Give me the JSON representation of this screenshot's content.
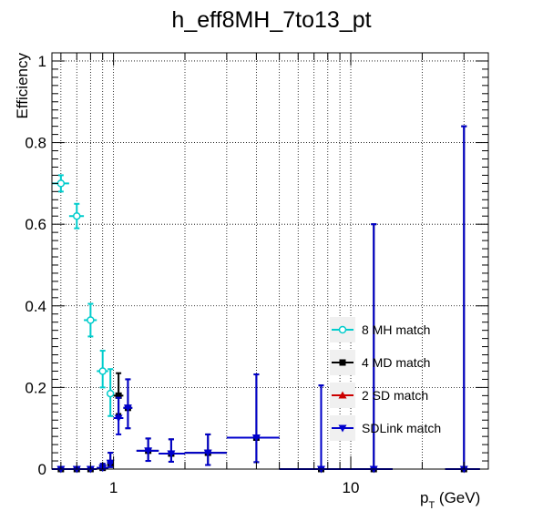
{
  "chart_data": {
    "type": "scatter",
    "title": "h_eff8MH_7to13_pt",
    "xlabel_main": "p",
    "xlabel_sub": "T",
    "xlabel_unit": " (GeV)",
    "ylabel": "Efficiency",
    "xscale": "log",
    "xlim": [
      0.55,
      38
    ],
    "ylim": [
      0,
      1.02
    ],
    "grid": true,
    "legend_position": "bottom-right",
    "x_tick_labels": [
      {
        "value": 1,
        "label": "1"
      },
      {
        "value": 10,
        "label": "10"
      }
    ],
    "y_tick_labels": [
      {
        "value": 0,
        "label": "0"
      },
      {
        "value": 0.2,
        "label": "0.2"
      },
      {
        "value": 0.4,
        "label": "0.4"
      },
      {
        "value": 0.6,
        "label": "0.6"
      },
      {
        "value": 0.8,
        "label": "0.8"
      },
      {
        "value": 1,
        "label": "1"
      }
    ],
    "series": [
      {
        "name": "8 MH match",
        "color": "#00cccc",
        "marker": "open-circle",
        "points": [
          {
            "x": 0.6,
            "xlo": 0.55,
            "xhi": 0.65,
            "y": 0.7,
            "elo": 0.02,
            "ehi": 0.02
          },
          {
            "x": 0.7,
            "xlo": 0.65,
            "xhi": 0.75,
            "y": 0.62,
            "elo": 0.03,
            "ehi": 0.03
          },
          {
            "x": 0.8,
            "xlo": 0.75,
            "xhi": 0.85,
            "y": 0.365,
            "elo": 0.04,
            "ehi": 0.04
          },
          {
            "x": 0.9,
            "xlo": 0.85,
            "xhi": 0.95,
            "y": 0.24,
            "elo": 0.04,
            "ehi": 0.05
          },
          {
            "x": 0.97,
            "xlo": 0.94,
            "xhi": 1.0,
            "y": 0.185,
            "elo": 0.055,
            "ehi": 0.06
          }
        ]
      },
      {
        "name": "4 MD match",
        "color": "#000000",
        "marker": "filled-square",
        "points": [
          {
            "x": 0.6,
            "xlo": 0.55,
            "xhi": 0.65,
            "y": 0.0,
            "elo": 0,
            "ehi": 0.004
          },
          {
            "x": 0.7,
            "xlo": 0.65,
            "xhi": 0.75,
            "y": 0.0,
            "elo": 0,
            "ehi": 0.004
          },
          {
            "x": 0.8,
            "xlo": 0.75,
            "xhi": 0.85,
            "y": 0.0,
            "elo": 0,
            "ehi": 0.004
          },
          {
            "x": 0.9,
            "xlo": 0.85,
            "xhi": 0.95,
            "y": 0.003,
            "elo": 0.003,
            "ehi": 0.01
          },
          {
            "x": 0.97,
            "xlo": 0.94,
            "xhi": 1.0,
            "y": 0.015,
            "elo": 0.01,
            "ehi": 0.025
          },
          {
            "x": 1.05,
            "xlo": 1.0,
            "xhi": 1.1,
            "y": 0.18,
            "elo": 0.045,
            "ehi": 0.055
          },
          {
            "x": 1.15,
            "xlo": 1.1,
            "xhi": 1.2,
            "y": 0.15,
            "elo": 0.05,
            "ehi": 0.07
          },
          {
            "x": 1.4,
            "xlo": 1.25,
            "xhi": 1.55,
            "y": 0.045,
            "elo": 0.025,
            "ehi": 0.03
          },
          {
            "x": 1.75,
            "xlo": 1.55,
            "xhi": 2.0,
            "y": 0.038,
            "elo": 0.02,
            "ehi": 0.035
          },
          {
            "x": 2.5,
            "xlo": 2.0,
            "xhi": 3.0,
            "y": 0.04,
            "elo": 0.03,
            "ehi": 0.045
          },
          {
            "x": 4.0,
            "xlo": 3.0,
            "xhi": 5.0,
            "y": 0.077,
            "elo": 0.06,
            "ehi": 0.155
          },
          {
            "x": 7.5,
            "xlo": 5.0,
            "xhi": 10.0,
            "y": 0.0,
            "elo": 0,
            "ehi": 0.205
          },
          {
            "x": 12.5,
            "xlo": 10.0,
            "xhi": 15.0,
            "y": 0.0,
            "elo": 0,
            "ehi": 0.6
          },
          {
            "x": 30,
            "xlo": 25,
            "xhi": 35,
            "y": 0.0,
            "elo": 0,
            "ehi": 0.84
          }
        ]
      },
      {
        "name": "2 SD match",
        "color": "#cc0000",
        "marker": "filled-triangle-up",
        "points": []
      },
      {
        "name": "SDLink match",
        "color": "#0000cc",
        "marker": "filled-triangle-down",
        "points": [
          {
            "x": 0.6,
            "xlo": 0.55,
            "xhi": 0.65,
            "y": 0.0,
            "elo": 0,
            "ehi": 0.004
          },
          {
            "x": 0.7,
            "xlo": 0.65,
            "xhi": 0.75,
            "y": 0.0,
            "elo": 0,
            "ehi": 0.004
          },
          {
            "x": 0.8,
            "xlo": 0.75,
            "xhi": 0.85,
            "y": 0.0,
            "elo": 0,
            "ehi": 0.004
          },
          {
            "x": 0.9,
            "xlo": 0.85,
            "xhi": 0.95,
            "y": 0.003,
            "elo": 0.003,
            "ehi": 0.01
          },
          {
            "x": 0.97,
            "xlo": 0.94,
            "xhi": 1.0,
            "y": 0.015,
            "elo": 0.01,
            "ehi": 0.025
          },
          {
            "x": 1.05,
            "xlo": 1.0,
            "xhi": 1.1,
            "y": 0.125,
            "elo": 0.04,
            "ehi": 0.05
          },
          {
            "x": 1.15,
            "xlo": 1.1,
            "xhi": 1.2,
            "y": 0.15,
            "elo": 0.05,
            "ehi": 0.07
          },
          {
            "x": 1.4,
            "xlo": 1.25,
            "xhi": 1.55,
            "y": 0.045,
            "elo": 0.025,
            "ehi": 0.03
          },
          {
            "x": 1.75,
            "xlo": 1.55,
            "xhi": 2.0,
            "y": 0.038,
            "elo": 0.02,
            "ehi": 0.035
          },
          {
            "x": 2.5,
            "xlo": 2.0,
            "xhi": 3.0,
            "y": 0.04,
            "elo": 0.03,
            "ehi": 0.045
          },
          {
            "x": 4.0,
            "xlo": 3.0,
            "xhi": 5.0,
            "y": 0.077,
            "elo": 0.06,
            "ehi": 0.155
          },
          {
            "x": 7.5,
            "xlo": 5.0,
            "xhi": 10.0,
            "y": 0.0,
            "elo": 0,
            "ehi": 0.205
          },
          {
            "x": 12.5,
            "xlo": 10.0,
            "xhi": 15.0,
            "y": 0.0,
            "elo": 0,
            "ehi": 0.6
          },
          {
            "x": 30,
            "xlo": 25,
            "xhi": 35,
            "y": 0.0,
            "elo": 0,
            "ehi": 0.84
          }
        ]
      }
    ]
  }
}
